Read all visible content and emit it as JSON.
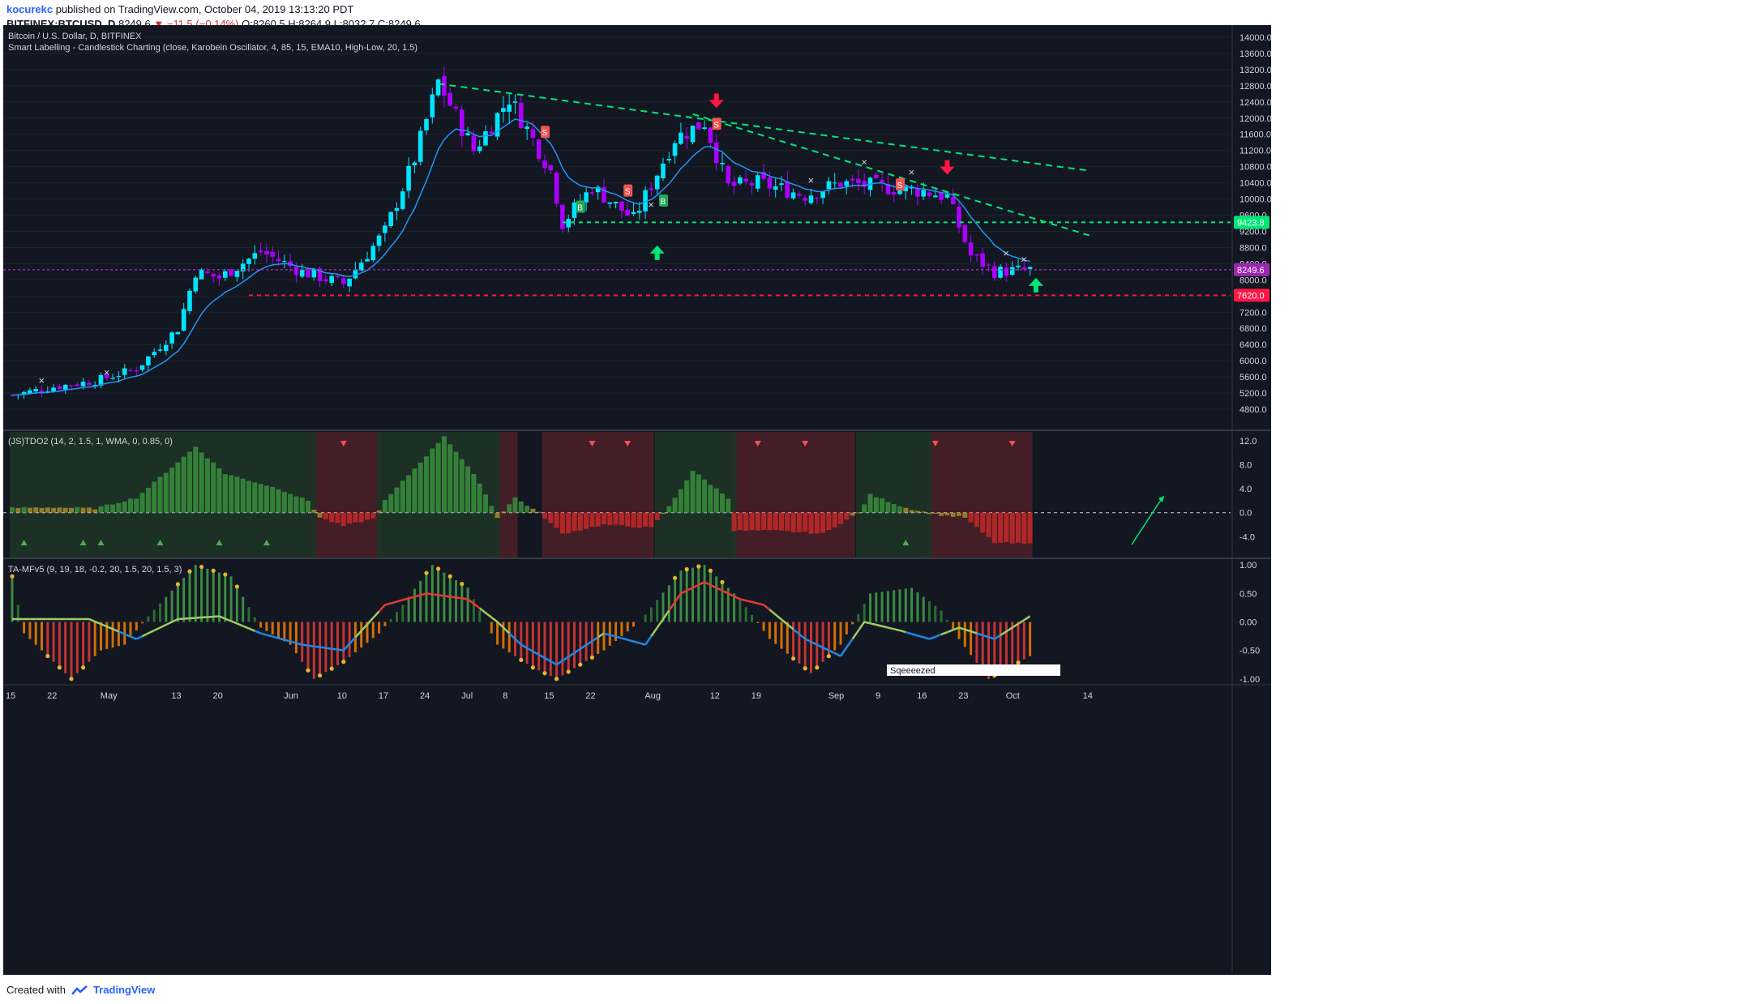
{
  "header": {
    "user": "kocurekc",
    "published": "published on TradingView.com, October 04, 2019 13:13:20 PDT",
    "symbol": "BITFINEX:BTCUSD, D",
    "price": "8249.6",
    "change": "−11.5 (−0.14%)",
    "o_label": "O:",
    "o_value": "8260.5",
    "h_label": "H:",
    "h_value": "8264.9",
    "l_label": "L:",
    "l_value": "8032.7",
    "c_label": "C:",
    "c_value": "8249.6"
  },
  "footer": {
    "created_with": "Created with",
    "brand": "TradingView"
  },
  "colors": {
    "background": "#131722",
    "bull": "#00e5ff",
    "bear": "#aa00ff",
    "ema": "#2196f3",
    "resistance": "#00e676",
    "support": "#ff1744",
    "last_price": "#9c27b0"
  },
  "chart_data": [
    {
      "type": "candlestick",
      "title": "Bitcoin / U.S. Dollar, D, BITFINEX",
      "subtitle": "Smart Labelling - Candlestick Charting (close, Karobein Oscillator, 4, 85, 15, EMA10, High-Low, 20, 1.5)",
      "ylim": [
        4500,
        14200
      ],
      "yticks": [
        "14000.0",
        "13600.0",
        "13200.0",
        "12800.0",
        "12400.0",
        "12000.0",
        "11600.0",
        "11200.0",
        "10800.0",
        "10400.0",
        "10000.0",
        "9600.0",
        "9200.0",
        "8800.0",
        "8400.0",
        "8000.0",
        "7600.0",
        "7200.0",
        "6800.0",
        "6400.0",
        "6000.0",
        "5600.0",
        "5200.0",
        "4800.0"
      ],
      "xticks": [
        "15",
        "22",
        "May",
        "13",
        "20",
        "Jun",
        "10",
        "17",
        "24",
        "Jul",
        "8",
        "15",
        "22",
        "Aug",
        "12",
        "19",
        "Sep",
        "9",
        "16",
        "23",
        "Oct",
        "14"
      ],
      "price_path": [
        [
          "2019-04-15",
          5150
        ],
        [
          "2019-04-22",
          5350
        ],
        [
          "2019-04-29",
          5500
        ],
        [
          "2019-05-06",
          5800
        ],
        [
          "2019-05-13",
          6800
        ],
        [
          "2019-05-16",
          8200
        ],
        [
          "2019-05-20",
          8050
        ],
        [
          "2019-05-27",
          8700
        ],
        [
          "2019-06-03",
          8200
        ],
        [
          "2019-06-10",
          7900
        ],
        [
          "2019-06-17",
          9200
        ],
        [
          "2019-06-22",
          11000
        ],
        [
          "2019-06-26",
          12900
        ],
        [
          "2019-07-02",
          11200
        ],
        [
          "2019-07-08",
          12500
        ],
        [
          "2019-07-15",
          10700
        ],
        [
          "2019-07-17",
          9400
        ],
        [
          "2019-07-22",
          10300
        ],
        [
          "2019-07-29",
          9500
        ],
        [
          "2019-08-05",
          11500
        ],
        [
          "2019-08-10",
          11900
        ],
        [
          "2019-08-14",
          10300
        ],
        [
          "2019-08-19",
          10400
        ],
        [
          "2019-08-27",
          10100
        ],
        [
          "2019-09-02",
          10400
        ],
        [
          "2019-09-09",
          10300
        ],
        [
          "2019-09-16",
          10200
        ],
        [
          "2019-09-20",
          10050
        ],
        [
          "2019-09-24",
          8600
        ],
        [
          "2019-09-28",
          8200
        ],
        [
          "2019-10-04",
          8249.6
        ]
      ],
      "ema_label": "EMA10",
      "signals": [
        "B",
        "B",
        "S",
        "S",
        "S",
        "S"
      ],
      "price_labels": [
        {
          "text": "9423.8",
          "value": 9423.8
        },
        {
          "text": "8249.6",
          "value": 8249.6
        },
        {
          "text": "7620.0",
          "value": 7620.0
        }
      ],
      "trendlines": [
        {
          "kind": "resistance",
          "from": [
            "2019-06-26",
            12850
          ],
          "to": [
            "2019-10-14",
            10700
          ]
        },
        {
          "kind": "resistance",
          "from": [
            "2019-08-08",
            12100
          ],
          "to": [
            "2019-10-14",
            9100
          ]
        },
        {
          "kind": "level",
          "value": 9423.8
        },
        {
          "kind": "support",
          "value": 7620.0
        },
        {
          "kind": "last",
          "value": 8249.6
        }
      ]
    },
    {
      "type": "bar",
      "title": "(JS)TDO2 (14, 2, 1.5, 1, WMA, 0, 0.85, 0)",
      "ylim": [
        -7.2,
        13.2
      ],
      "yticks": [
        "12.0",
        "8.0",
        "4.0",
        "0.0",
        "-4.0"
      ],
      "profile": [
        [
          "2019-04-15",
          0.8
        ],
        [
          "2019-04-22",
          0.9
        ],
        [
          "2019-04-29",
          0.7
        ],
        [
          "2019-05-06",
          2.5
        ],
        [
          "2019-05-16",
          11.0
        ],
        [
          "2019-05-21",
          6.5
        ],
        [
          "2019-05-30",
          4.0
        ],
        [
          "2019-06-04",
          2.0
        ],
        [
          "2019-06-06",
          -0.8
        ],
        [
          "2019-06-10",
          -2.2
        ],
        [
          "2019-06-15",
          -1.0
        ],
        [
          "2019-06-17",
          2.0
        ],
        [
          "2019-06-24",
          9.5
        ],
        [
          "2019-06-27",
          12.8
        ],
        [
          "2019-07-03",
          5.0
        ],
        [
          "2019-07-06",
          -0.8
        ],
        [
          "2019-07-09",
          2.5
        ],
        [
          "2019-07-13",
          0.0
        ],
        [
          "2019-07-17",
          -3.5
        ],
        [
          "2019-07-24",
          -2.0
        ],
        [
          "2019-08-01",
          -2.5
        ],
        [
          "2019-08-04",
          1.0
        ],
        [
          "2019-08-08",
          7.0
        ],
        [
          "2019-08-14",
          2.5
        ],
        [
          "2019-08-15",
          -3.0
        ],
        [
          "2019-08-22",
          -3.0
        ],
        [
          "2019-08-30",
          -3.5
        ],
        [
          "2019-09-05",
          0.0
        ],
        [
          "2019-09-07",
          3.0
        ],
        [
          "2019-09-13",
          0.8
        ],
        [
          "2019-09-18",
          -0.3
        ],
        [
          "2019-09-23",
          -0.8
        ],
        [
          "2019-09-28",
          -5.0
        ],
        [
          "2019-10-04",
          -5.2
        ]
      ]
    },
    {
      "type": "bar",
      "title": "TA-MFv5 (9, 19, 18, -0.2, 20, 1.5, 20, 1.5, 3)",
      "ylim": [
        -1.06,
        1.06
      ],
      "yticks": [
        "1.00",
        "0.50",
        "0.00",
        "-0.50",
        "-1.00"
      ],
      "annotation": "Sqeeeezed",
      "histogram_profile": [
        [
          "2019-04-15",
          0.8
        ],
        [
          "2019-04-17",
          -0.2
        ],
        [
          "2019-04-25",
          -1.0
        ],
        [
          "2019-04-30",
          -0.5
        ],
        [
          "2019-05-04",
          -0.4
        ],
        [
          "2019-05-08",
          0.1
        ],
        [
          "2019-05-16",
          1.0
        ],
        [
          "2019-05-22",
          0.8
        ],
        [
          "2019-05-27",
          -0.1
        ],
        [
          "2019-06-01",
          -0.4
        ],
        [
          "2019-06-05",
          -1.0
        ],
        [
          "2019-06-10",
          -0.7
        ],
        [
          "2019-06-16",
          -0.2
        ],
        [
          "2019-06-20",
          0.3
        ],
        [
          "2019-06-25",
          1.0
        ],
        [
          "2019-07-01",
          0.6
        ],
        [
          "2019-07-06",
          -0.4
        ],
        [
          "2019-07-12",
          -0.8
        ],
        [
          "2019-07-16",
          -1.0
        ],
        [
          "2019-07-24",
          -0.5
        ],
        [
          "2019-07-30",
          0.0
        ],
        [
          "2019-08-06",
          0.9
        ],
        [
          "2019-08-10",
          1.0
        ],
        [
          "2019-08-16",
          0.4
        ],
        [
          "2019-08-21",
          -0.3
        ],
        [
          "2019-08-28",
          -0.9
        ],
        [
          "2019-09-02",
          -0.4
        ],
        [
          "2019-09-07",
          0.5
        ],
        [
          "2019-09-14",
          0.6
        ],
        [
          "2019-09-19",
          0.2
        ],
        [
          "2019-09-22",
          -0.3
        ],
        [
          "2019-09-27",
          -1.0
        ],
        [
          "2019-10-04",
          -0.6
        ]
      ],
      "line_profile": [
        [
          "2019-04-15",
          0.05
        ],
        [
          "2019-04-28",
          0.05
        ],
        [
          "2019-05-06",
          -0.3
        ],
        [
          "2019-05-13",
          0.05
        ],
        [
          "2019-05-20",
          0.1
        ],
        [
          "2019-05-27",
          -0.2
        ],
        [
          "2019-06-03",
          -0.4
        ],
        [
          "2019-06-10",
          -0.5
        ],
        [
          "2019-06-17",
          0.3
        ],
        [
          "2019-06-24",
          0.5
        ],
        [
          "2019-07-01",
          0.4
        ],
        [
          "2019-07-06",
          0.0
        ],
        [
          "2019-07-10",
          -0.4
        ],
        [
          "2019-07-16",
          -0.75
        ],
        [
          "2019-07-24",
          -0.2
        ],
        [
          "2019-07-31",
          -0.4
        ],
        [
          "2019-08-06",
          0.5
        ],
        [
          "2019-08-10",
          0.7
        ],
        [
          "2019-08-16",
          0.4
        ],
        [
          "2019-08-20",
          0.3
        ],
        [
          "2019-08-27",
          -0.3
        ],
        [
          "2019-09-02",
          -0.6
        ],
        [
          "2019-09-06",
          0.0
        ],
        [
          "2019-09-12",
          -0.15
        ],
        [
          "2019-09-17",
          -0.3
        ],
        [
          "2019-09-22",
          -0.1
        ],
        [
          "2019-09-28",
          -0.3
        ],
        [
          "2019-10-04",
          0.1
        ]
      ]
    }
  ]
}
